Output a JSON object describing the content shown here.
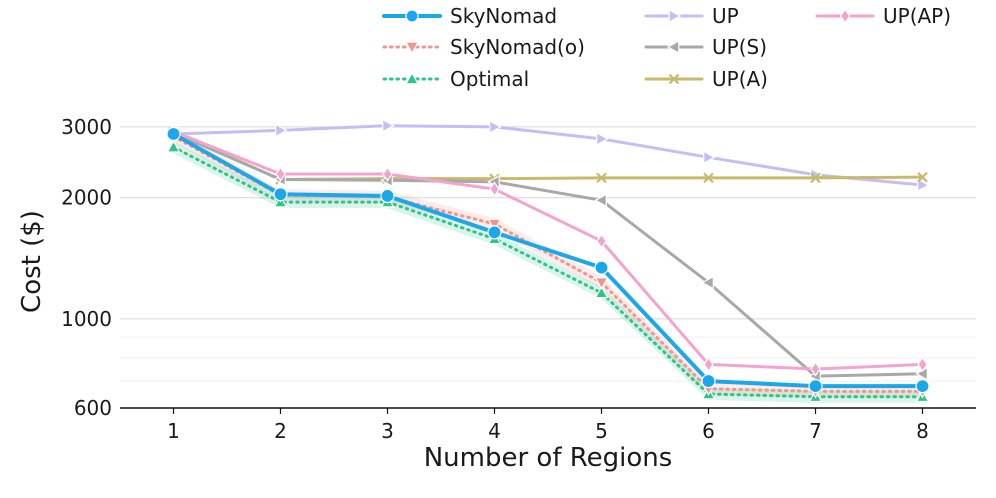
{
  "chart_data": {
    "type": "line",
    "title": "",
    "xlabel": "Number of Regions",
    "ylabel": "Cost ($)",
    "yscale": "log",
    "ylim": [
      600,
      3600
    ],
    "xlim": [
      0.5,
      8.5
    ],
    "grid": true,
    "legend_position": "top",
    "x": [
      1,
      2,
      3,
      4,
      5,
      6,
      7,
      8
    ],
    "x_tick_labels": [
      "1",
      "2",
      "3",
      "4",
      "5",
      "6",
      "7",
      "8"
    ],
    "y_ticks": [
      600,
      1000,
      2000,
      3000
    ],
    "y_tick_labels": [
      "600",
      "1000",
      "2000",
      "3000"
    ],
    "series": [
      {
        "name": "SkyNomad",
        "color": "#1aa7ec",
        "style": "solid",
        "marker": "circle",
        "values": [
          2880,
          2040,
          2020,
          1640,
          1340,
          700,
          680,
          680
        ]
      },
      {
        "name": "SkyNomad(o)",
        "color": "#f4948a",
        "style": "dotted",
        "marker": "triangle-down",
        "values": [
          2840,
          2030,
          2010,
          1720,
          1230,
          670,
          660,
          660
        ]
      },
      {
        "name": "Optimal",
        "color": "#2ec48a",
        "style": "dotted",
        "marker": "triangle-up",
        "values": [
          2670,
          1950,
          1950,
          1580,
          1160,
          650,
          640,
          640
        ]
      },
      {
        "name": "UP",
        "color": "#c7bdf5",
        "style": "solid",
        "marker": "triangle-right",
        "values": [
          2880,
          2940,
          3020,
          3000,
          2800,
          2520,
          2280,
          2150
        ]
      },
      {
        "name": "UP(S)",
        "color": "#a8a8a8",
        "style": "solid",
        "marker": "triangle-left",
        "values": [
          2900,
          2220,
          2210,
          2190,
          1970,
          1230,
          720,
          730
        ]
      },
      {
        "name": "UP(A)",
        "color": "#c9b96a",
        "style": "solid",
        "marker": "x",
        "values": [
          2910,
          2220,
          2230,
          2230,
          2240,
          2240,
          2240,
          2250
        ]
      },
      {
        "name": "UP(AP)",
        "color": "#f4a3cf",
        "style": "solid",
        "marker": "diamond",
        "values": [
          2920,
          2290,
          2290,
          2100,
          1560,
          770,
          750,
          770
        ]
      }
    ]
  }
}
